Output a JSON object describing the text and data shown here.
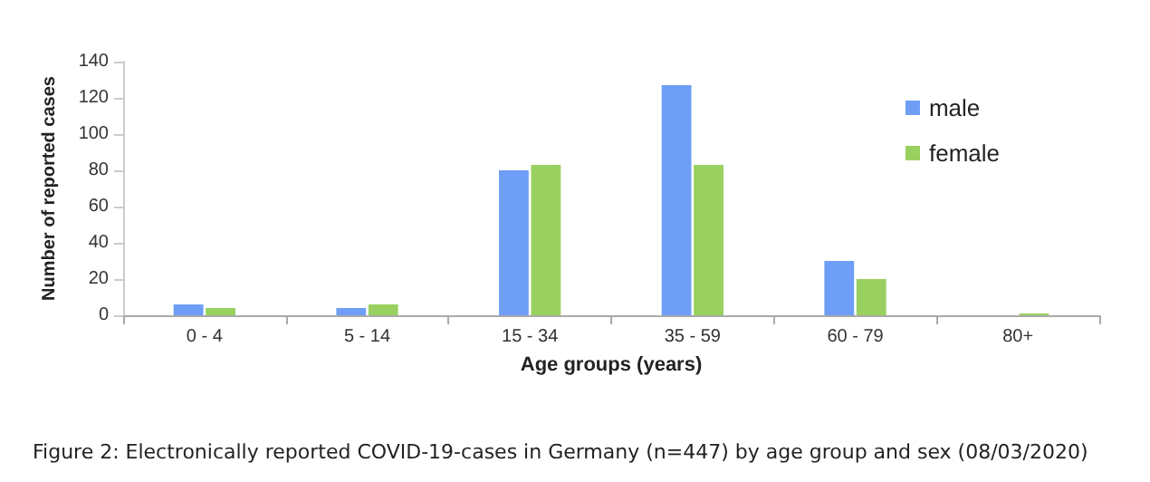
{
  "chart_data": {
    "type": "bar",
    "xlabel": "Age groups (years)",
    "ylabel": "Number of reported cases",
    "categories": [
      "0 - 4",
      "5 - 14",
      "15 - 34",
      "35 - 59",
      "60 - 79",
      "80+"
    ],
    "series": [
      {
        "name": "male",
        "color": "#6e9ef5",
        "values": [
          6,
          4,
          80,
          127,
          30,
          0
        ]
      },
      {
        "name": "female",
        "color": "#99d05f",
        "values": [
          4,
          6,
          83,
          83,
          20,
          1
        ]
      }
    ],
    "ylim": [
      0,
      140
    ],
    "yticks": [
      0,
      20,
      40,
      60,
      80,
      100,
      120,
      140
    ],
    "grid": false,
    "legend": "top right",
    "annotations": [
      "Figure 2: Electronically reported COVID-19-cases in Germany (n=447) by age group and sex (08/03/2020)"
    ]
  }
}
